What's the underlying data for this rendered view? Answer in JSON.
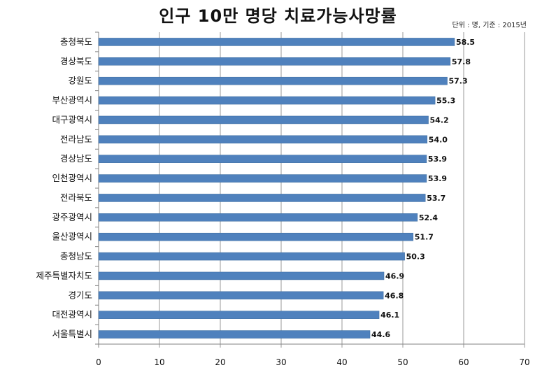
{
  "chart_data": {
    "type": "bar",
    "orientation": "horizontal",
    "title": "인구 10만 명당 치료가능사망률",
    "unit_note": "단위 : 명, 기준 : 2015년",
    "categories": [
      "충청북도",
      "경상북도",
      "강원도",
      "부산광역시",
      "대구광역시",
      "전라남도",
      "경상남도",
      "인천광역시",
      "전라북도",
      "광주광역시",
      "울산광역시",
      "충청남도",
      "제주특별자치도",
      "경기도",
      "대전광역시",
      "서울특별시"
    ],
    "values": [
      58.5,
      57.8,
      57.3,
      55.3,
      54.2,
      54.0,
      53.9,
      53.9,
      53.7,
      52.4,
      51.7,
      50.3,
      46.9,
      46.8,
      46.1,
      44.6
    ],
    "value_labels": [
      "58.5",
      "57.8",
      "57.3",
      "55.3",
      "54.2",
      "54.0",
      "53.9",
      "53.9",
      "53.7",
      "52.4",
      "51.7",
      "50.3",
      "46.9",
      "46.8",
      "46.1",
      "44.6"
    ],
    "xlim": [
      0,
      70
    ],
    "x_ticks": [
      "0",
      "10",
      "20",
      "30",
      "40",
      "50",
      "60",
      "70"
    ],
    "grid": true,
    "bar_color": "#4F81BD",
    "bar_edge_color": "#3A6A9E"
  }
}
